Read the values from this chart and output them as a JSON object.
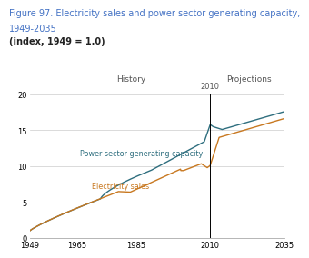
{
  "title_line1": "Figure 97. Electricity sales and power sector generating capacity,",
  "title_line2": "1949-2035",
  "title_line3": "(index, 1949 = 1.0)",
  "title_color": "#4472c4",
  "title_fontsize": 7.0,
  "ylim": [
    0,
    20
  ],
  "xlim": [
    1949,
    2035
  ],
  "yticks": [
    0,
    5,
    10,
    15,
    20
  ],
  "xticks": [
    1949,
    1965,
    1985,
    2010,
    2035
  ],
  "xticklabels": [
    "1949",
    "1965",
    "1985",
    "2010",
    "2035"
  ],
  "history_label": "History",
  "projections_label": "Projections",
  "divider_year": 2010,
  "capacity_label": "Power sector generating capacity",
  "sales_label": "Electricity sales",
  "capacity_color": "#2e6e7e",
  "sales_color": "#c87820",
  "background_color": "#ffffff",
  "grid_color": "#cccccc"
}
